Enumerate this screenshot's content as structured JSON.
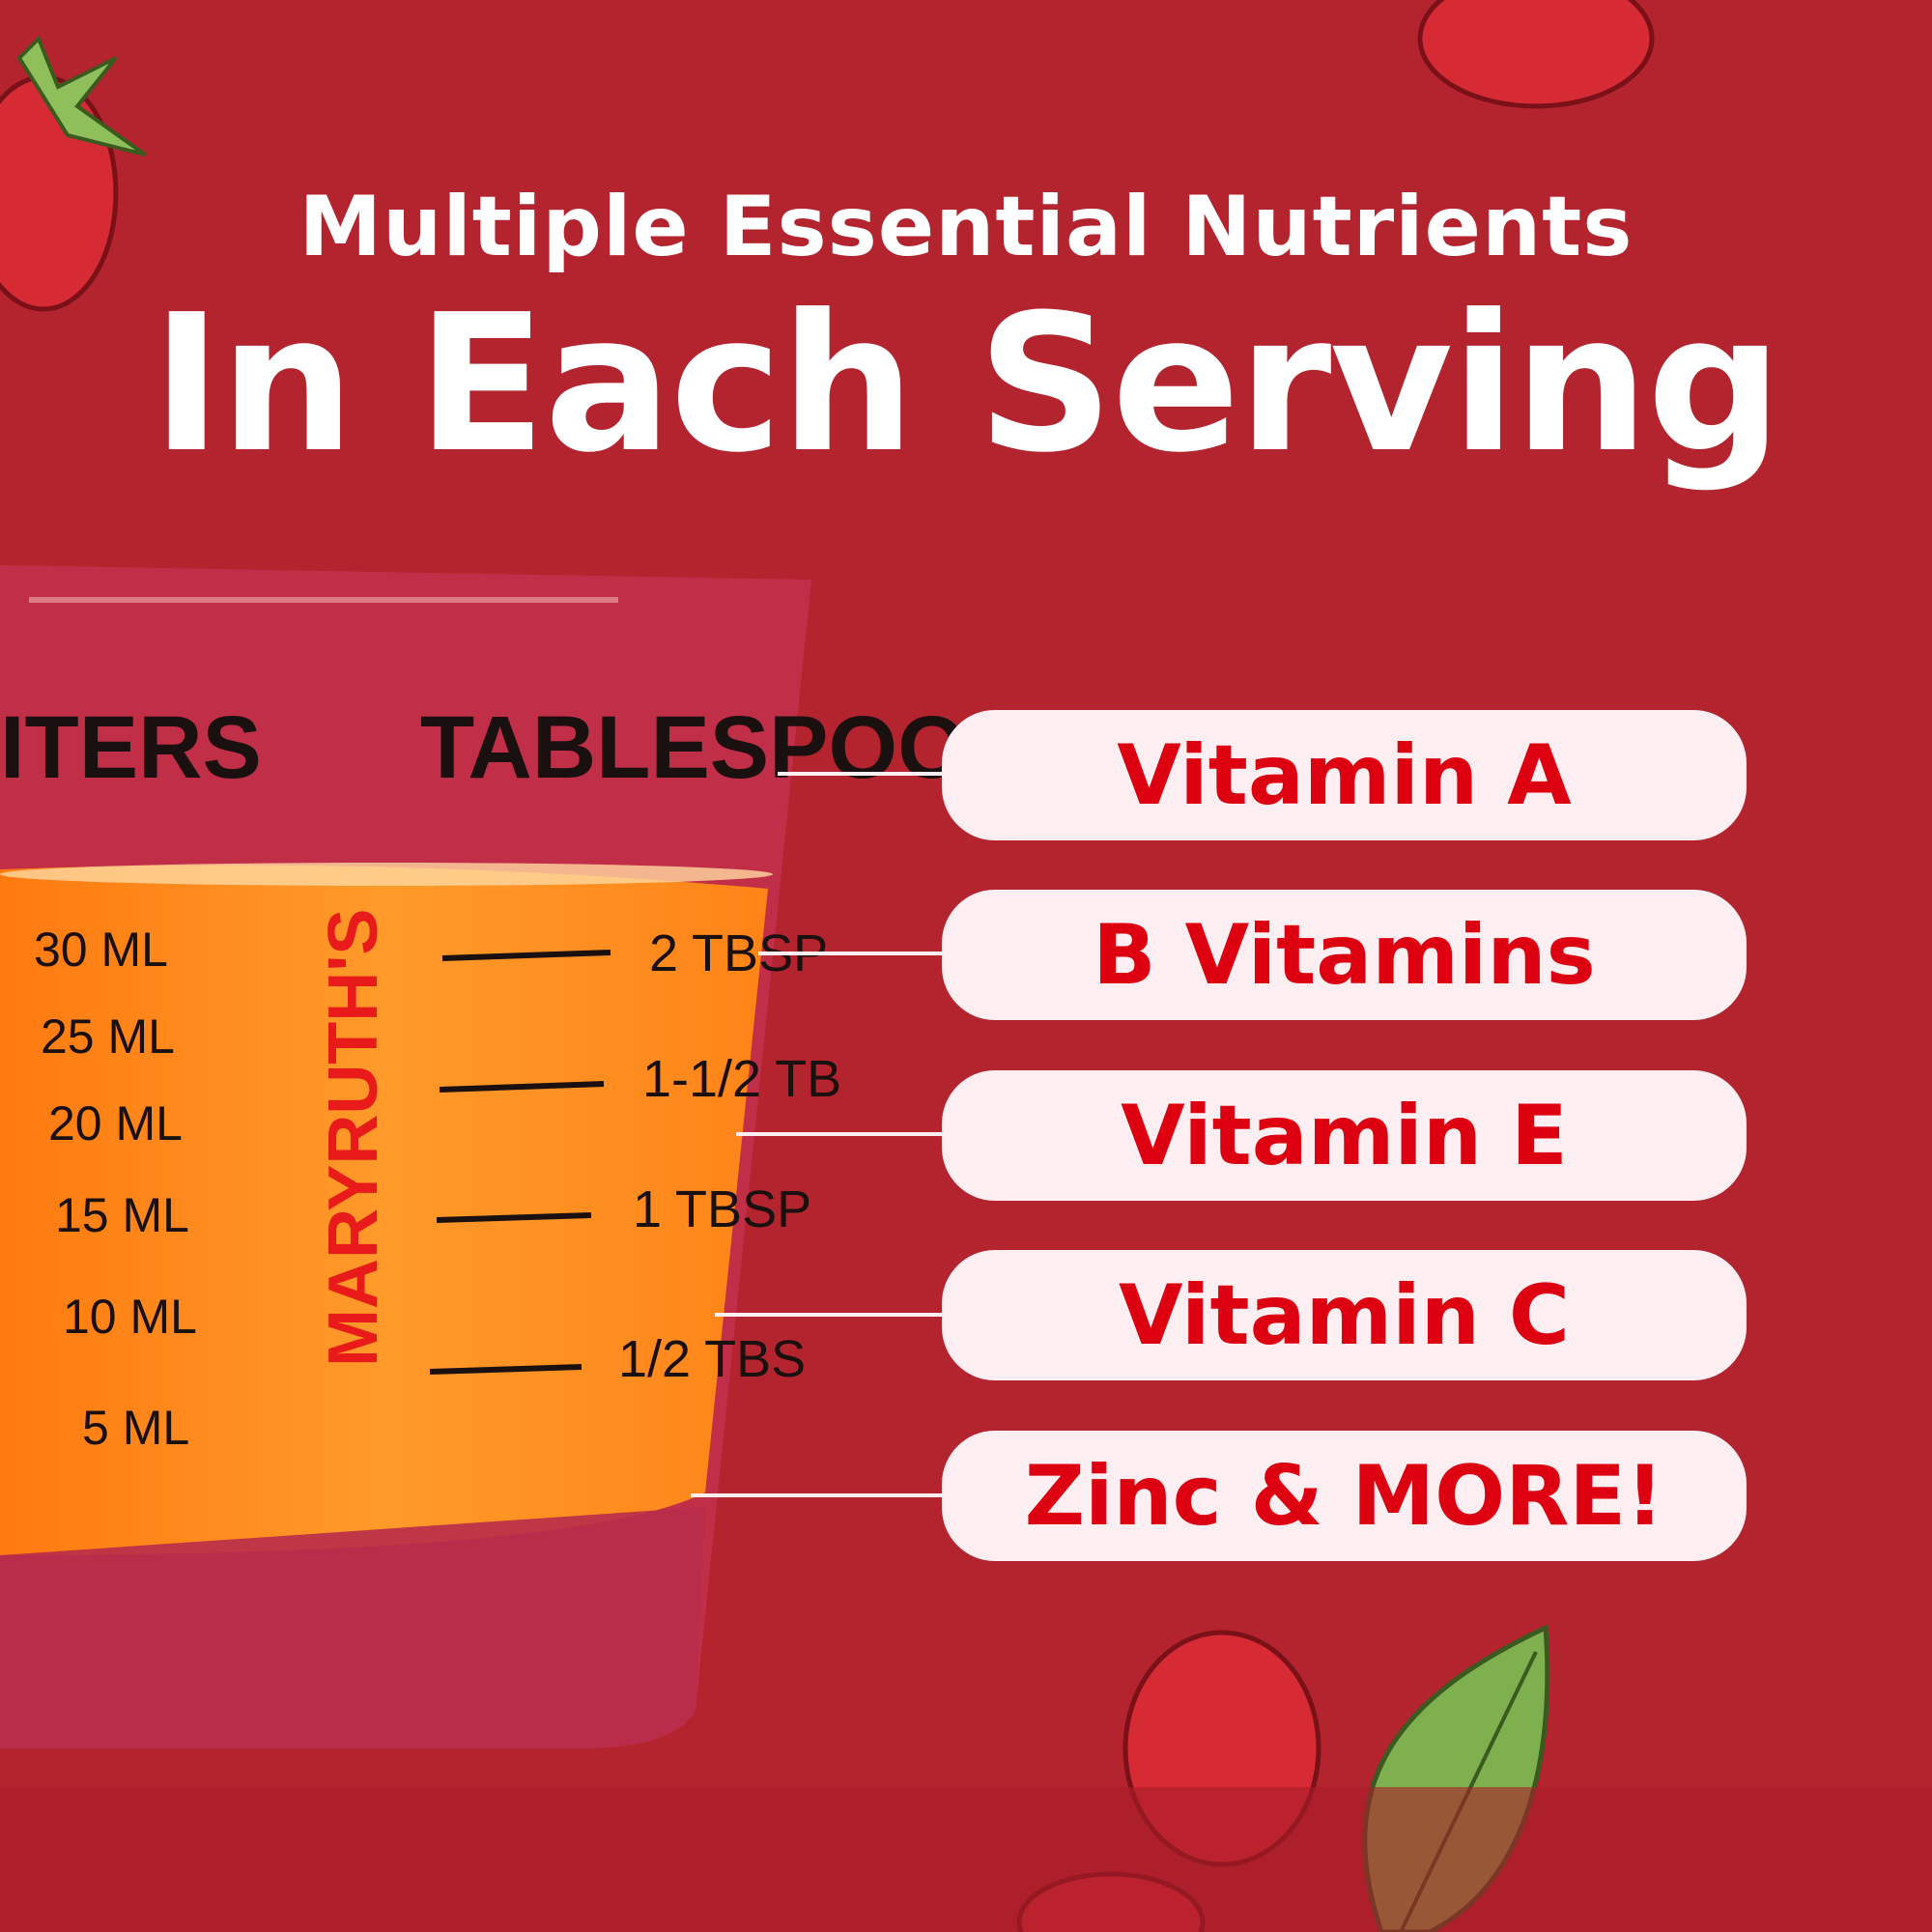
{
  "headline": {
    "line1": "Multiple Essential Nutrients",
    "line2": "In Each Serving"
  },
  "colors": {
    "background": "#b3242f",
    "pill_background": "#fdeef2",
    "pill_text": "#dd0010",
    "juice": "#ff8a1e"
  },
  "nutrients": [
    {
      "label": "Vitamin A"
    },
    {
      "label": "B Vitamins"
    },
    {
      "label": "Vitamin E"
    },
    {
      "label": "Vitamin C"
    },
    {
      "label": "Zinc & MORE!"
    }
  ],
  "glass": {
    "brand": "MARYRUTH'S",
    "header_left": "ITERS",
    "header_right": "TABLESPOO",
    "ml_marks": [
      "30 ML",
      "25 ML",
      "20 ML",
      "15 ML",
      "10 ML",
      "5 ML"
    ],
    "tbsp_marks": [
      "2 TBSP",
      "1-1/2 TB",
      "1 TBSP",
      "1/2 TBS"
    ]
  }
}
